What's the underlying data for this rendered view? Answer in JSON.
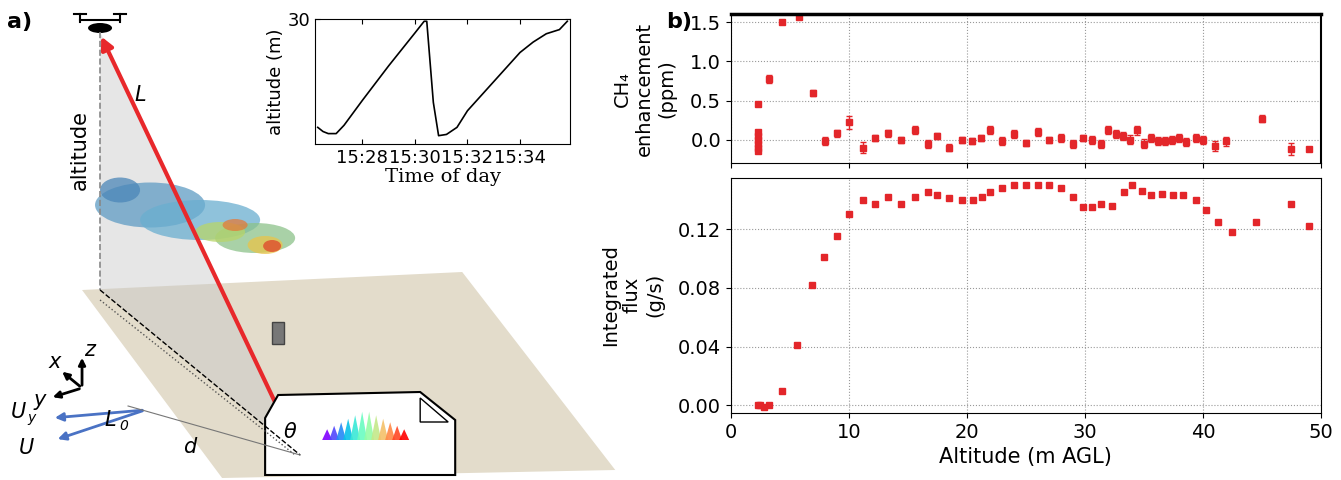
{
  "panel_labels": [
    "a)",
    "b)"
  ],
  "diagram": {
    "labels": [
      "altitude",
      "L",
      "x",
      "y",
      "z",
      "d",
      "θ",
      "U"
    ],
    "subscripted": [
      {
        "text": "L",
        "sub": "0"
      },
      {
        "text": "U",
        "sub": "y"
      }
    ]
  },
  "chart_data": [
    {
      "type": "line",
      "xlabel": "Time of day",
      "ylabel": "altitude (m)",
      "color": "#000000",
      "x": [
        926.3,
        926.5,
        926.7,
        927.0,
        927.3,
        928.0,
        929.0,
        930.0,
        930.35,
        930.45,
        930.7,
        930.9,
        931.2,
        931.6,
        932.0,
        932.5,
        933.0,
        933.5,
        934.0,
        934.5,
        935.0,
        935.5,
        935.8
      ],
      "values": [
        4,
        3,
        2.5,
        2.5,
        4.5,
        10.5,
        18.8,
        26.7,
        29.5,
        29.5,
        10,
        2,
        2.3,
        4,
        8,
        11.5,
        15,
        18.5,
        22,
        24.5,
        26.5,
        27.5,
        29.5
      ],
      "xlim": [
        926.2,
        935.9
      ],
      "xticks": [
        {
          "value": 928,
          "label": "15:28"
        },
        {
          "value": 930,
          "label": "15:30"
        },
        {
          "value": 932,
          "label": "15:32"
        },
        {
          "value": 934,
          "label": "15:34"
        }
      ],
      "ylim": [
        0,
        30
      ],
      "yticks": [
        30
      ]
    },
    {
      "type": "scatter",
      "ylabel": "CH₄ enhancement (ppm)",
      "color": "#e3262a",
      "marker": "s",
      "x": [
        2.3,
        2.3,
        2.3,
        2.3,
        2.3,
        2.3,
        2.3,
        3.2,
        4.3,
        5.8,
        7.0,
        8.0,
        9.0,
        10.0,
        11.2,
        12.2,
        13.3,
        14.4,
        15.6,
        16.7,
        17.5,
        18.5,
        19.6,
        20.4,
        21.2,
        22.0,
        23.0,
        24.0,
        25.0,
        26.0,
        27.0,
        28.0,
        29.0,
        29.8,
        30.6,
        31.4,
        32.0,
        32.6,
        33.2,
        33.8,
        34.4,
        35.0,
        35.6,
        36.2,
        36.8,
        37.4,
        38.0,
        38.6,
        39.4,
        40.0,
        41.0,
        42.0,
        45.0,
        47.5,
        49.0
      ],
      "values": [
        0.45,
        0.1,
        0.05,
        0.0,
        -0.05,
        -0.1,
        -0.15,
        0.78,
        1.5,
        1.57,
        0.6,
        -0.02,
        0.08,
        0.22,
        -0.1,
        0.02,
        0.08,
        0.0,
        0.12,
        -0.05,
        0.05,
        -0.1,
        0.0,
        -0.02,
        0.02,
        0.12,
        -0.02,
        0.07,
        -0.04,
        0.1,
        0.0,
        0.02,
        -0.05,
        0.02,
        0.0,
        -0.06,
        0.12,
        0.07,
        0.05,
        0.0,
        0.12,
        -0.05,
        0.02,
        -0.02,
        -0.02,
        0.0,
        0.02,
        -0.03,
        0.02,
        0.0,
        -0.08,
        -0.02,
        0.27,
        -0.12,
        -0.12
      ],
      "errors": [
        null,
        null,
        null,
        null,
        null,
        null,
        null,
        0.05,
        null,
        null,
        0.04,
        0.05,
        0.04,
        0.08,
        0.07,
        0.04,
        0.05,
        0.04,
        0.05,
        0.05,
        0.04,
        0.05,
        0.04,
        0.04,
        0.04,
        0.05,
        0.05,
        0.05,
        0.04,
        0.05,
        0.04,
        0.05,
        0.05,
        0.04,
        0.05,
        0.05,
        0.05,
        0.05,
        0.05,
        0.06,
        0.06,
        0.06,
        0.05,
        0.05,
        0.05,
        0.05,
        0.05,
        0.05,
        0.05,
        0.05,
        0.06,
        0.06,
        0.05,
        0.08,
        null
      ],
      "xlim": [
        0,
        50
      ],
      "xticks": [
        0,
        10,
        20,
        30,
        40,
        50
      ],
      "ylim": [
        -0.3,
        1.6
      ],
      "yticks": [
        0.0,
        0.5,
        1.0,
        1.5
      ],
      "grid": true,
      "tick_labels": "y"
    },
    {
      "type": "scatter",
      "xlabel": "Altitude (m AGL)",
      "ylabel": "Integrated flux (g/s)",
      "color": "#e3262a",
      "marker": "s",
      "x": [
        2.3,
        2.5,
        2.8,
        3.2,
        4.3,
        5.6,
        6.9,
        7.9,
        9.0,
        10.0,
        11.2,
        12.2,
        13.3,
        14.4,
        15.6,
        16.7,
        17.5,
        18.5,
        19.6,
        20.5,
        21.3,
        22.0,
        23.0,
        24.0,
        25.0,
        26.0,
        27.0,
        28.0,
        29.0,
        29.8,
        30.6,
        31.4,
        32.3,
        33.3,
        34.0,
        34.8,
        35.6,
        36.5,
        37.5,
        38.3,
        39.4,
        40.3,
        41.3,
        42.5,
        44.5,
        47.5,
        49.0
      ],
      "values": [
        0.0,
        0.0,
        -0.001,
        0.0,
        0.01,
        0.041,
        0.082,
        0.101,
        0.115,
        0.13,
        0.14,
        0.137,
        0.142,
        0.137,
        0.142,
        0.145,
        0.143,
        0.141,
        0.14,
        0.14,
        0.142,
        0.145,
        0.148,
        0.15,
        0.15,
        0.15,
        0.15,
        0.148,
        0.142,
        0.135,
        0.135,
        0.137,
        0.136,
        0.145,
        0.15,
        0.146,
        0.143,
        0.144,
        0.143,
        0.143,
        0.14,
        0.133,
        0.125,
        0.118,
        0.125,
        0.137,
        0.122
      ],
      "xlim": [
        0,
        50
      ],
      "xticks": [
        0,
        10,
        20,
        30,
        40,
        50
      ],
      "ylim": [
        -0.005,
        0.155
      ],
      "yticks": [
        {
          "value": 0,
          "label": "0.00"
        },
        0.04,
        0.08,
        0.12
      ],
      "grid": true
    }
  ]
}
